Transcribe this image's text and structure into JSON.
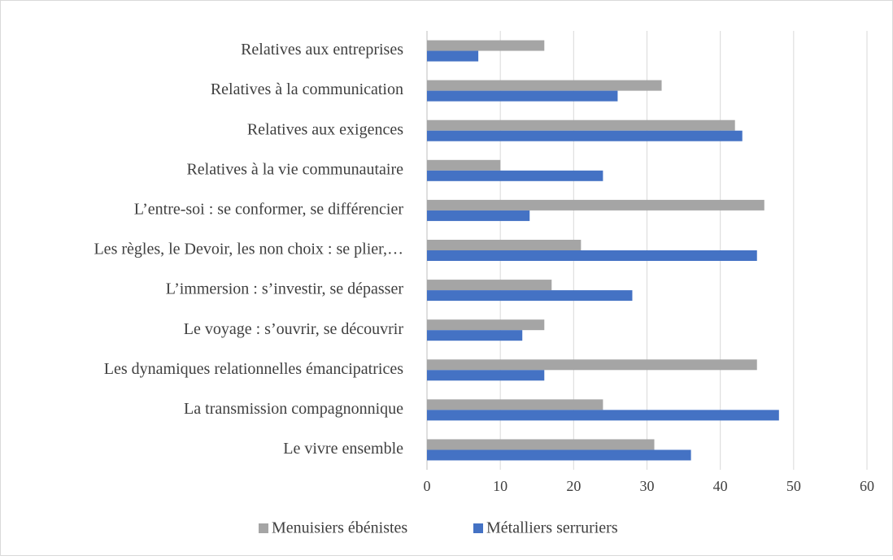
{
  "chart_data": {
    "type": "bar",
    "orientation": "horizontal",
    "categories": [
      "Relatives aux entreprises",
      "Relatives à la communication",
      "Relatives aux exigences",
      "Relatives à la vie communautaire",
      "L’entre-soi : se conformer, se différencier",
      "Les règles, le Devoir, les non choix : se plier,…",
      "L’immersion : s’investir, se dépasser",
      "Le voyage : s’ouvrir, se découvrir",
      "Les dynamiques relationnelles émancipatrices",
      "La transmission compagnonnique",
      "Le vivre ensemble"
    ],
    "series": [
      {
        "name": "Menuisiers ébénistes",
        "color": "#a5a5a5",
        "values": [
          16,
          32,
          42,
          10,
          46,
          21,
          17,
          16,
          45,
          24,
          31
        ]
      },
      {
        "name": "Métalliers serruriers",
        "color": "#4472c4",
        "values": [
          7,
          26,
          43,
          24,
          14,
          45,
          28,
          13,
          16,
          48,
          36
        ]
      }
    ],
    "xlim": [
      0,
      60
    ],
    "xticks": [
      0,
      10,
      20,
      30,
      40,
      50,
      60
    ],
    "grid": true,
    "legend": "bottom"
  }
}
